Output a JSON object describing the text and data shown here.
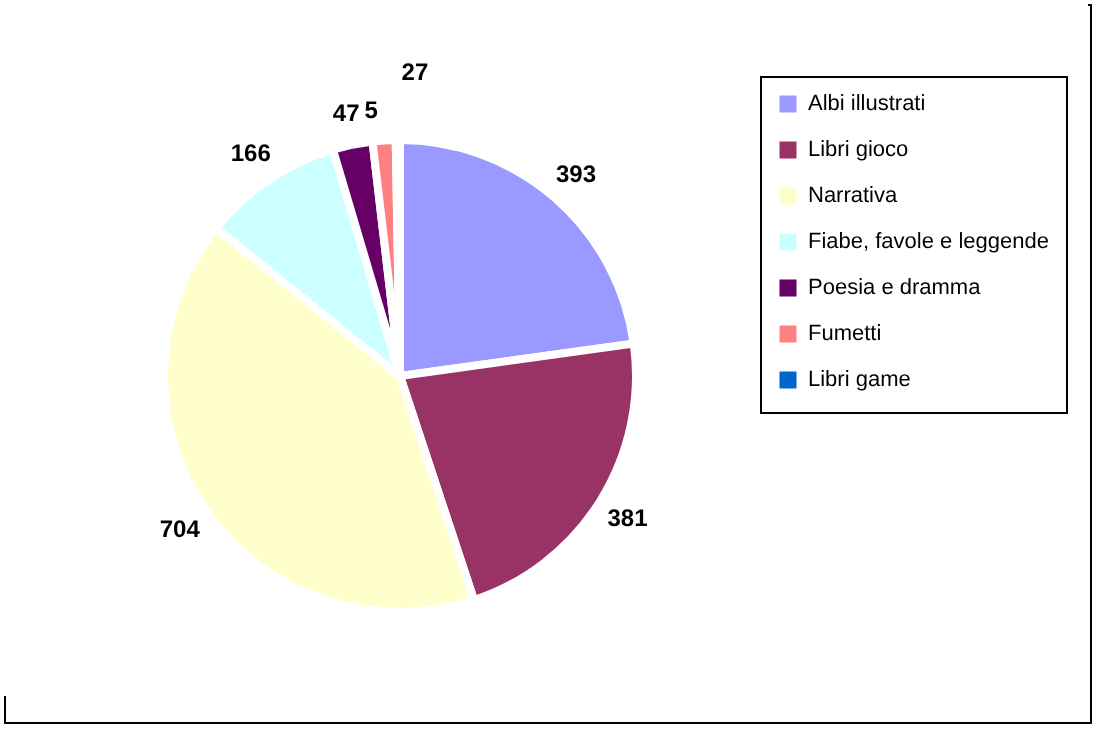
{
  "chart_data": {
    "type": "pie",
    "categories": [
      "Albi illustrati",
      "Libri gioco",
      "Narrativa",
      "Fiabe, favole e leggende",
      "Poesia e dramma",
      "Fumetti",
      "Libri game"
    ],
    "values": [
      393,
      381,
      704,
      166,
      47,
      27,
      5
    ],
    "colors": [
      "#9999ff",
      "#993366",
      "#ffffcc",
      "#ccffff",
      "#660066",
      "#ff8080",
      "#0066cc"
    ],
    "data_labels": true,
    "legend": "right"
  }
}
